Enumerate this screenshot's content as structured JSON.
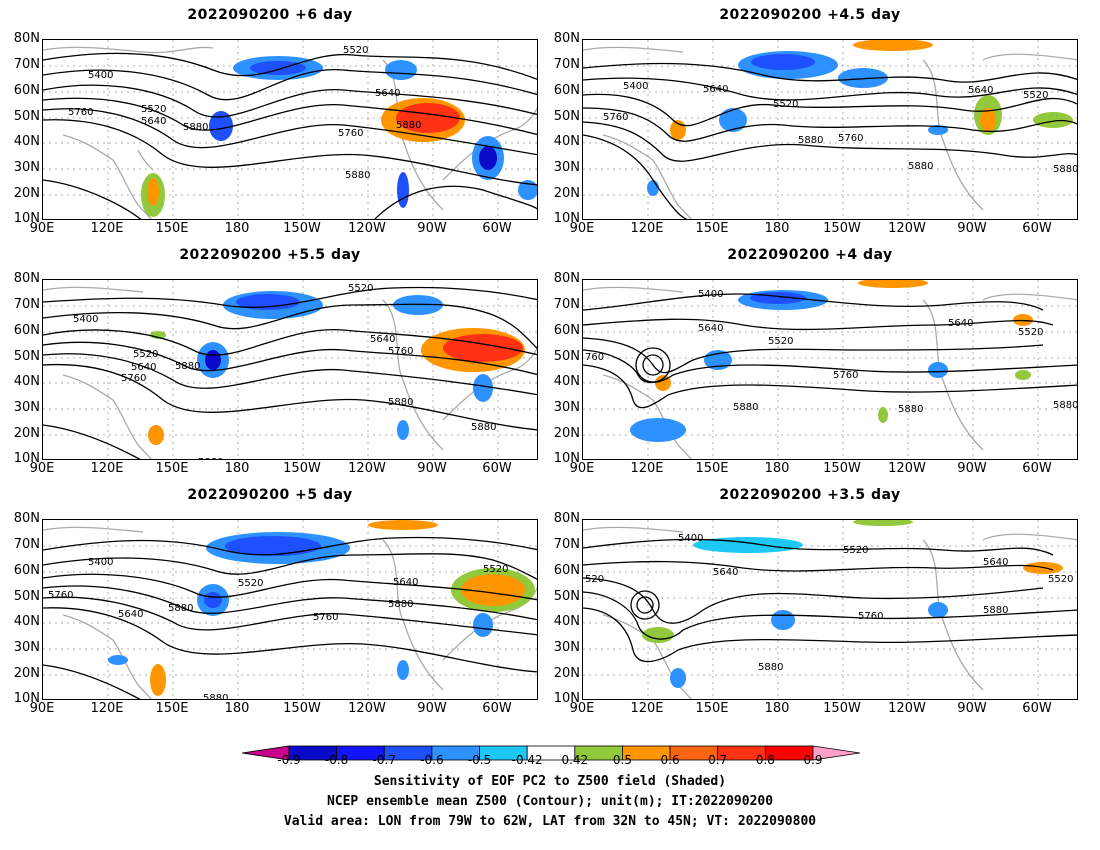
{
  "panels": [
    {
      "id": "p1",
      "title": "2022090200 +6 day"
    },
    {
      "id": "p2",
      "title": "2022090200 +4.5 day"
    },
    {
      "id": "p3",
      "title": "2022090200 +5.5 day"
    },
    {
      "id": "p4",
      "title": "2022090200 +4 day"
    },
    {
      "id": "p5",
      "title": "2022090200 +5 day"
    },
    {
      "id": "p6",
      "title": "2022090200 +3.5 day"
    }
  ],
  "y_ticks": [
    "80N",
    "70N",
    "60N",
    "50N",
    "40N",
    "30N",
    "20N",
    "10N"
  ],
  "x_ticks": [
    "90E",
    "120E",
    "150E",
    "180",
    "150W",
    "120W",
    "90W",
    "60W"
  ],
  "contour_labels": {
    "p1": [
      "5520",
      "5400",
      "5520",
      "5640",
      "5760",
      "5880",
      "5640",
      "5880",
      "5760",
      "5880"
    ],
    "p2": [
      "5400",
      "5640",
      "5760",
      "5520",
      "5880",
      "5760",
      "5640",
      "5520",
      "5880",
      "5880"
    ],
    "p3": [
      "5520",
      "5400",
      "5520",
      "5640",
      "5760",
      "5880",
      "5640",
      "5760",
      "5880",
      "5880",
      "5880"
    ],
    "p4": [
      "5400",
      "5640",
      "5520",
      "760",
      "5760",
      "5880",
      "5640",
      "5520",
      "5880",
      "5880"
    ],
    "p5": [
      "5400",
      "5760",
      "5640",
      "5880",
      "5520",
      "5640",
      "5880",
      "5760",
      "5520",
      "5880"
    ],
    "p6": [
      "5400",
      "5520",
      "5640",
      "520",
      "5880",
      "5760",
      "5640",
      "5520",
      "5880"
    ]
  },
  "colorbar": {
    "ticks": [
      "-0.9",
      "-0.8",
      "-0.7",
      "-0.6",
      "-0.5",
      "-0.42",
      "0.42",
      "0.5",
      "0.6",
      "0.7",
      "0.8",
      "0.9"
    ],
    "colors": [
      "#c8008c",
      "#0a0ac8",
      "#1414ff",
      "#1e50ff",
      "#2d91ff",
      "#1ec8f5",
      "#ffffff",
      "#91c83c",
      "#ff9600",
      "#ff6414",
      "#ff3214",
      "#ff0000",
      "#ffa0c8"
    ]
  },
  "captions": [
    "Sensitivity of EOF PC2 to Z500 field (Shaded)",
    "NCEP ensemble mean Z500 (Contour); unit(m); IT:2022090200",
    "Valid area: LON from 79W to 62W, LAT from 32N to 45N; VT: 2022090800"
  ]
}
